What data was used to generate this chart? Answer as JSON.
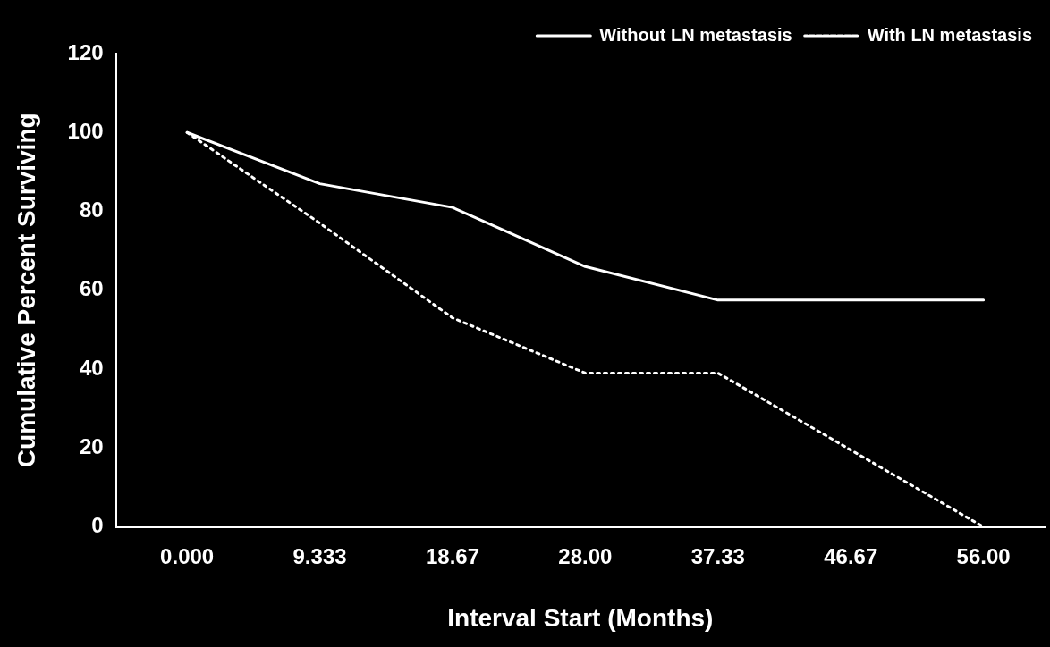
{
  "chart_data": {
    "type": "line",
    "xlabel": "Interval Start (Months)",
    "ylabel": "Cumulative Percent Surviving",
    "x": [
      0,
      9.333,
      18.667,
      28,
      37.333,
      56
    ],
    "series": [
      {
        "name": "Without LN metastasis",
        "color": "#ffffff",
        "line_style": "solid",
        "values": [
          100,
          87,
          81,
          66,
          57.5,
          57.5
        ]
      },
      {
        "name": "With LN metastasis",
        "color": "#ffffff",
        "line_style": "dotted",
        "values": [
          100,
          77,
          53,
          39,
          39,
          0
        ]
      }
    ],
    "xlim": [
      -5,
      60.3
    ],
    "xticks": [
      {
        "value": 0,
        "label": "0.000"
      },
      {
        "value": 9.333,
        "label": "9.333"
      },
      {
        "value": 18.667,
        "label": "18.67"
      },
      {
        "value": 28,
        "label": "28.00"
      },
      {
        "value": 37.333,
        "label": "37.33"
      },
      {
        "value": 46.667,
        "label": "46.67"
      },
      {
        "value": 56,
        "label": "56.00"
      }
    ],
    "ylim": [
      0,
      120
    ],
    "yticks": [
      0,
      20,
      40,
      60,
      80,
      100,
      120
    ],
    "grid": false,
    "legend": "top right",
    "marker": "none"
  }
}
